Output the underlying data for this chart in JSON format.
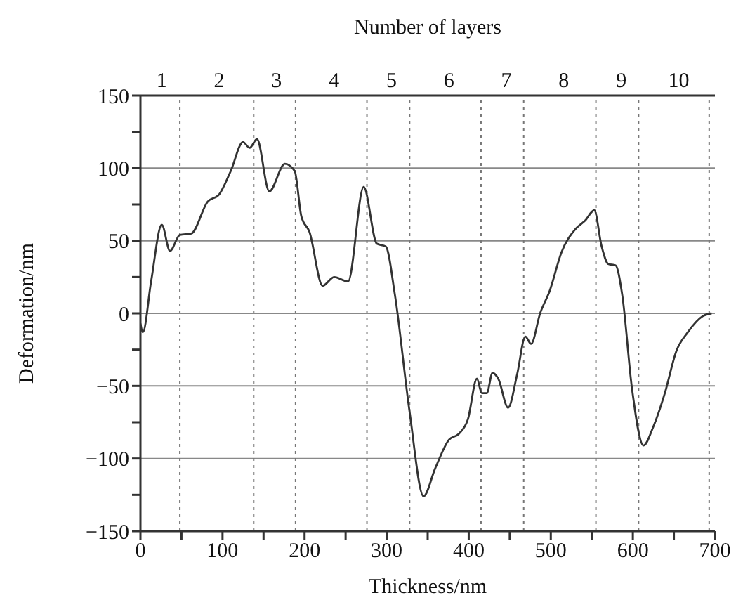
{
  "chart_data": {
    "type": "line",
    "xlabel": "Thickness/nm",
    "ylabel": "Deformation/nm",
    "x2label": "Number of layers",
    "xlim": [
      0,
      700
    ],
    "xticks": [
      0,
      {
        "value": 50,
        "label": null
      },
      100,
      {
        "value": 150,
        "label": null
      },
      200,
      {
        "value": 250,
        "label": null
      },
      300,
      {
        "value": 350,
        "label": null
      },
      400,
      {
        "value": 450,
        "label": null
      },
      500,
      {
        "value": 550,
        "label": null
      },
      600,
      {
        "value": 650,
        "label": null
      },
      700
    ],
    "x2lim": [
      0.63,
      10.63
    ],
    "x2ticks": [
      1,
      2,
      3,
      4,
      5,
      6,
      7,
      8,
      9,
      10
    ],
    "ylim": [
      -150,
      150
    ],
    "yticks": [
      -150,
      {
        "value": -125,
        "label": null
      },
      -100,
      {
        "value": -75,
        "label": null
      },
      -50,
      {
        "value": -25,
        "label": null
      },
      0,
      {
        "value": 25,
        "label": null
      },
      50,
      {
        "value": 75,
        "label": null
      },
      100,
      {
        "value": 125,
        "label": null
      },
      150
    ],
    "grid": "y",
    "marker": "none",
    "line_style": "solid",
    "ref_lines": [
      {
        "axis": "x",
        "value": 48,
        "line_style": "dotted",
        "color": "#777777"
      },
      {
        "axis": "x",
        "value": 138,
        "line_style": "dotted",
        "color": "#777777"
      },
      {
        "axis": "x",
        "value": 189,
        "line_style": "dotted",
        "color": "#777777"
      },
      {
        "axis": "x",
        "value": 276,
        "line_style": "dotted",
        "color": "#777777"
      },
      {
        "axis": "x",
        "value": 328,
        "line_style": "dotted",
        "color": "#777777"
      },
      {
        "axis": "x",
        "value": 415,
        "line_style": "dotted",
        "color": "#777777"
      },
      {
        "axis": "x",
        "value": 467,
        "line_style": "dotted",
        "color": "#777777"
      },
      {
        "axis": "x",
        "value": 555,
        "line_style": "dotted",
        "color": "#777777"
      },
      {
        "axis": "x",
        "value": 607,
        "line_style": "dotted",
        "color": "#777777"
      },
      {
        "axis": "x",
        "value": 693,
        "line_style": "dotted",
        "color": "#777777"
      }
    ],
    "series": [
      {
        "color": "#333333",
        "x": [
          0,
          3,
          13,
          26,
          36,
          48,
          62,
          82,
          96,
          110,
          125,
          133,
          142,
          157,
          176,
          188,
          196,
          206,
          222,
          236,
          253,
          272,
          288,
          299,
          310,
          328,
          345,
          359,
          376,
          388,
          399,
          410,
          416,
          422,
          429,
          436,
          448,
          459,
          469,
          476,
          487,
          499,
          513,
          530,
          542,
          553,
          562,
          570,
          579,
          587,
          599,
          613,
          625,
          639,
          653,
          667,
          685,
          696
        ],
        "values": [
          -7,
          -13,
          22,
          61,
          43,
          54,
          55,
          77,
          82,
          98,
          118,
          114,
          120,
          84,
          103,
          98,
          67,
          56,
          19,
          25,
          22,
          87,
          48,
          46,
          13,
          -68,
          -126,
          -107,
          -87,
          -83,
          -73,
          -45,
          -55,
          -55,
          -41,
          -45,
          -65,
          -42,
          -16,
          -21,
          0,
          16,
          42,
          58,
          64,
          71,
          46,
          34,
          33,
          13,
          -52,
          -91,
          -78,
          -55,
          -26,
          -13,
          -2,
          0
        ]
      }
    ]
  }
}
